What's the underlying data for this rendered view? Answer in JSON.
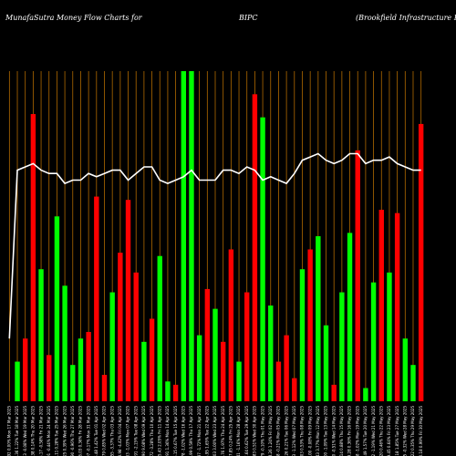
{
  "header": {
    "left": "MunafaSutra  Money Flow  Charts for",
    "center": "BIPC",
    "right": "(Brookfield Infrastructure   Part"
  },
  "chart_data": {
    "type": "bar",
    "grid": "vertical",
    "ylim": [
      0,
      100
    ],
    "categories": [
      "Fri 30 May 2025",
      "Thu 29 May 2025",
      "Wed 28 May 2025",
      "Tue 27 May 2025",
      "Fri 23 May 2025",
      "Thu 22 May 2025",
      "Wed 21 May 2025",
      "Tue 20 May 2025",
      "Mon 19 May 2025",
      "Fri 16 May 2025",
      "Thu 15 May 2025",
      "Wed 14 May 2025",
      "Tue 13 May 2025",
      "Mon 12 May 2025",
      "Fri 09 May 2025",
      "Thu 08 May 2025",
      "Wed 07 May 2025",
      "Tue 06 May 2025",
      "Mon 05 May 2025",
      "Fri 02 May 2025",
      "Thu 01 May 2025",
      "Wed 30 Apr 2025",
      "Tue 29 Apr 2025",
      "Mon 28 Apr 2025",
      "Fri 25 Apr 2025",
      "Thu 24 Apr 2025",
      "Wed 23 Apr 2025",
      "Tue 22 Apr 2025",
      "Mon 21 Apr 2025",
      "Thu 17 Apr 2025",
      "Wed 16 Apr 2025",
      "Tue 15 Apr 2025",
      "Mon 14 Apr 2025",
      "Fri 11 Apr 2025",
      "Thu 10 Apr 2025",
      "Wed 09 Apr 2025",
      "Tue 08 Apr 2025",
      "Mon 07 Apr 2025",
      "Fri 04 Apr 2025",
      "Thu 03 Apr 2025",
      "Wed 02 Apr 2025",
      "Tue 01 Apr 2025",
      "Mon 31 Mar 2025",
      "Fri 28 Mar 2025",
      "Thu 27 Mar 2025",
      "Wed 26 Mar 2025",
      "Tue 25 Mar 2025",
      "Mon 24 Mar 2025",
      "Fri 21 Mar 2025",
      "Thu 20 Mar 2025",
      "Wed 19 Mar 2025",
      "Tue 18 Mar 2025",
      "Mon 17 Mar 2025"
    ],
    "xlabels": [
      "40.18 0.99% Fri 30 May 2025",
      "40.22 0.35% Thu 29 May 2025",
      "40.05 -0.32% Wed 28 May 2025",
      "40.18 1.85% Tue 27 May 2025",
      "39.45 0.64% Fri 23 May 2025",
      "39.20 0.46% Thu 22 May 2025",
      "39.02 -1.19% Wed 21 May 2025",
      "39.49 1.57% Tue 20 May 2025",
      "38.88 -1.02% Mon 19 May 2025",
      "39.28 0.36% Fri 16 May 2025",
      "39.14 0.88% Thu 15 May 2025",
      "38.80 -0.51% Wed 14 May 2025",
      "39.00 -1.09% Tue 13 May 2025",
      "39.43 3.77% Mon 12 May 2025",
      "38.00 -0.08% Fri 09 May 2025",
      "38.03 0.53% Thu 08 May 2025",
      "37.83 -1.12% Wed 07 May 2025",
      "38.26 0.21% Tue 06 May 2025",
      "38.18 -0.21% Mon 05 May 2025",
      "38.26 1.24% Fri 02 May 2025",
      "37.79 -0.10% Thu 01 May 2025",
      "37.83 0.51% Wed 30 Apr 2025",
      "37.64 0.62% Tue 29 Apr 2025",
      "37.41 -1.16% Mon 28 Apr 2025",
      "37.85 0.24% Fri 25 Apr 2025",
      "37.76 1.97% Thu 24 Apr 2025",
      "37.03 3.00% Wed 23 Apr 2025",
      "35.95 1.65% Tue 22 Apr 2025",
      "35.37 -1.72% Mon 21 Apr 2025",
      "35.99 0.59% Thu 17 Apr 2025",
      "35.78 -1.02% Wed 16 Apr 2025",
      "36.15 0.67% Tue 15 Apr 2025",
      "35.91 1.36% Mon 14 Apr 2025",
      "35.43 2.05% Fri 11 Apr 2025",
      "34.72 -3.28% Thu 10 Apr 2025",
      "35.90 9.08% Wed 09 Apr 2025",
      "32.91 -2.15% Tue 08 Apr 2025",
      "33.63 -1.03% Mon 07 Apr 2025",
      "33.98 -4.42% Fri 04 Apr 2025",
      "35.55 -3.37% Thu 03 Apr 2025",
      "36.79 0.85% Wed 02 Apr 2025",
      "36.48 1.42% Tue 01 Apr 2025",
      "35.97 -0.17% Mon 31 Mar 2025",
      "36.03 0.36% Fri 28 Mar 2025",
      "35.90 -0.96% Thu 27 Mar 2025",
      "36.25 0.39% Wed 26 Mar 2025",
      "36.11 0.28% Tue 25 Mar 2025",
      "36.01 -0.44% Mon 24 Mar 2025",
      "36.17 -0.58% Fri 21 Mar 2025",
      "36.38 0.14% Thu 20 Mar 2025",
      "36.33 -0.08% Wed 19 Mar 2025",
      "36.36 1.22% Tue 18 Mar 2025",
      "35.92 0.00% Mon 17 Mar 2025"
    ],
    "values": [
      84,
      11,
      19,
      57,
      39,
      58,
      36,
      4,
      76,
      51,
      33,
      5,
      23,
      50,
      46,
      40,
      7,
      20,
      12,
      29,
      86,
      93,
      33,
      12,
      46,
      18,
      28,
      34,
      20,
      100,
      100,
      5,
      6,
      44,
      25,
      18,
      39,
      61,
      45,
      33,
      8,
      62,
      21,
      19,
      11,
      35,
      56,
      14,
      40,
      87,
      19,
      12,
      0
    ],
    "colors": [
      "red",
      "green",
      "green",
      "red",
      "green",
      "red",
      "green",
      "green",
      "red",
      "green",
      "green",
      "red",
      "green",
      "green",
      "red",
      "green",
      "red",
      "red",
      "red",
      "green",
      "green",
      "red",
      "red",
      "green",
      "red",
      "red",
      "green",
      "red",
      "green",
      "green",
      "green",
      "red",
      "green",
      "green",
      "red",
      "green",
      "red",
      "red",
      "red",
      "green",
      "red",
      "red",
      "red",
      "green",
      "green",
      "green",
      "green",
      "red",
      "green",
      "red",
      "red",
      "green",
      "green"
    ],
    "line": [
      70,
      70,
      71,
      72,
      74,
      73,
      73,
      72,
      75,
      75,
      73,
      72,
      73,
      75,
      74,
      73,
      69,
      66,
      67,
      68,
      67,
      70,
      71,
      69,
      70,
      70,
      67,
      67,
      67,
      70,
      68,
      67,
      66,
      67,
      71,
      71,
      69,
      67,
      70,
      70,
      69,
      68,
      69,
      67,
      67,
      66,
      69,
      69,
      70,
      72,
      71,
      70,
      19
    ],
    "palette": {
      "green": "#00ff00",
      "red": "#ff0000",
      "grid": "#b06a00",
      "line": "#ffffff",
      "background": "#000000"
    }
  }
}
